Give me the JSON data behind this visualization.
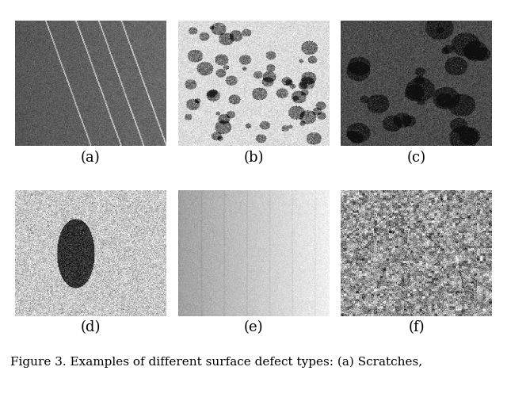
{
  "title": "Figure 3. Examples of different surface defect types: (a) Scratches,",
  "labels": [
    "(a)",
    "(b)",
    "(c)",
    "(d)",
    "(e)",
    "(f)"
  ],
  "nrows": 2,
  "ncols": 3,
  "img_size": 200,
  "background_color": "#ffffff",
  "caption_fontsize": 11,
  "label_fontsize": 13
}
